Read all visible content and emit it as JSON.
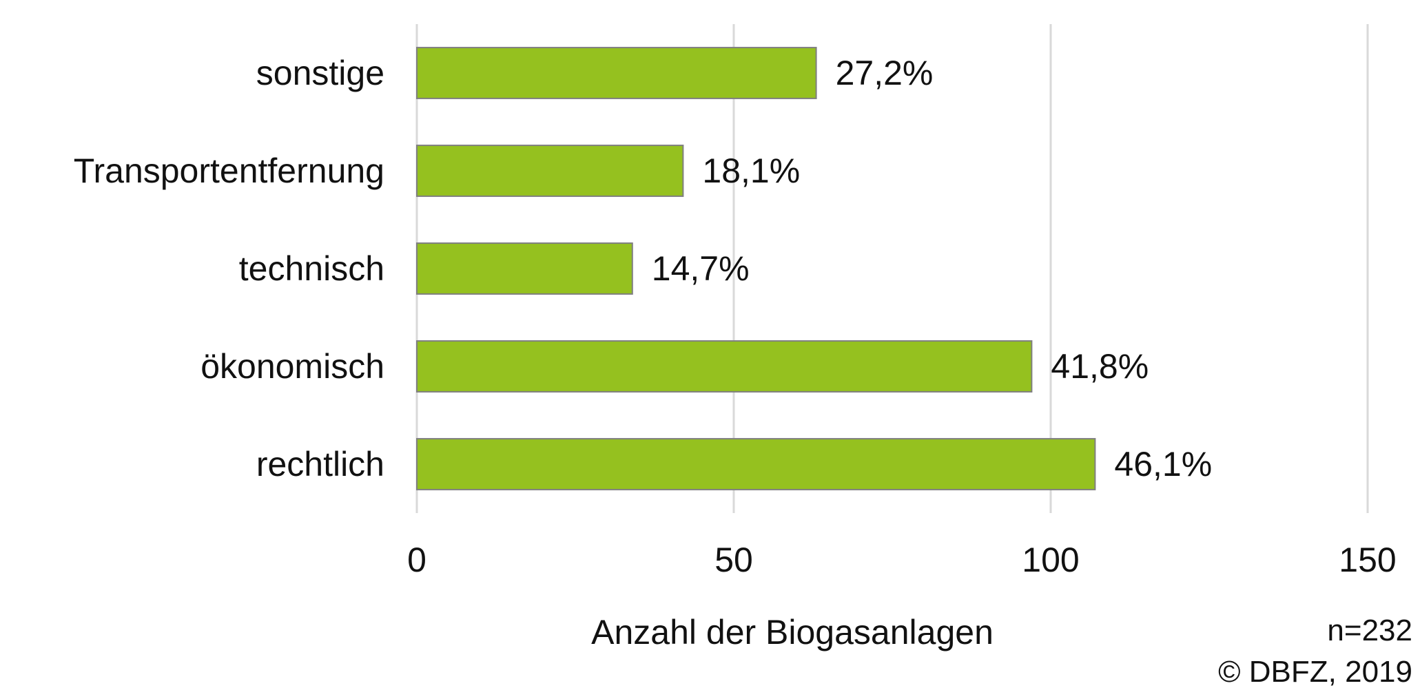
{
  "chart_data": {
    "type": "bar",
    "orientation": "horizontal",
    "categories": [
      "sonstige",
      "Transportentfernung",
      "technisch",
      "ökonomisch",
      "rechtlich"
    ],
    "values": [
      63,
      42,
      34,
      97,
      107
    ],
    "data_labels": [
      "27,2%",
      "18,1%",
      "14,7%",
      "41,8%",
      "46,1%"
    ],
    "xlabel": "Anzahl der Biogasanlagen",
    "ylabel": "",
    "xlim": [
      0,
      150
    ],
    "xticks": [
      0,
      50,
      100,
      150
    ],
    "xtick_labels": [
      "0",
      "50",
      "100",
      "150"
    ],
    "grid": "vertical",
    "legend": "none",
    "colors": {
      "bar": "#95c11f",
      "bar_border": "#7f7f7f",
      "grid": "#d9d9d9"
    }
  },
  "notes": {
    "sample_size": "n=232",
    "copyright": "© DBFZ, 2019"
  }
}
